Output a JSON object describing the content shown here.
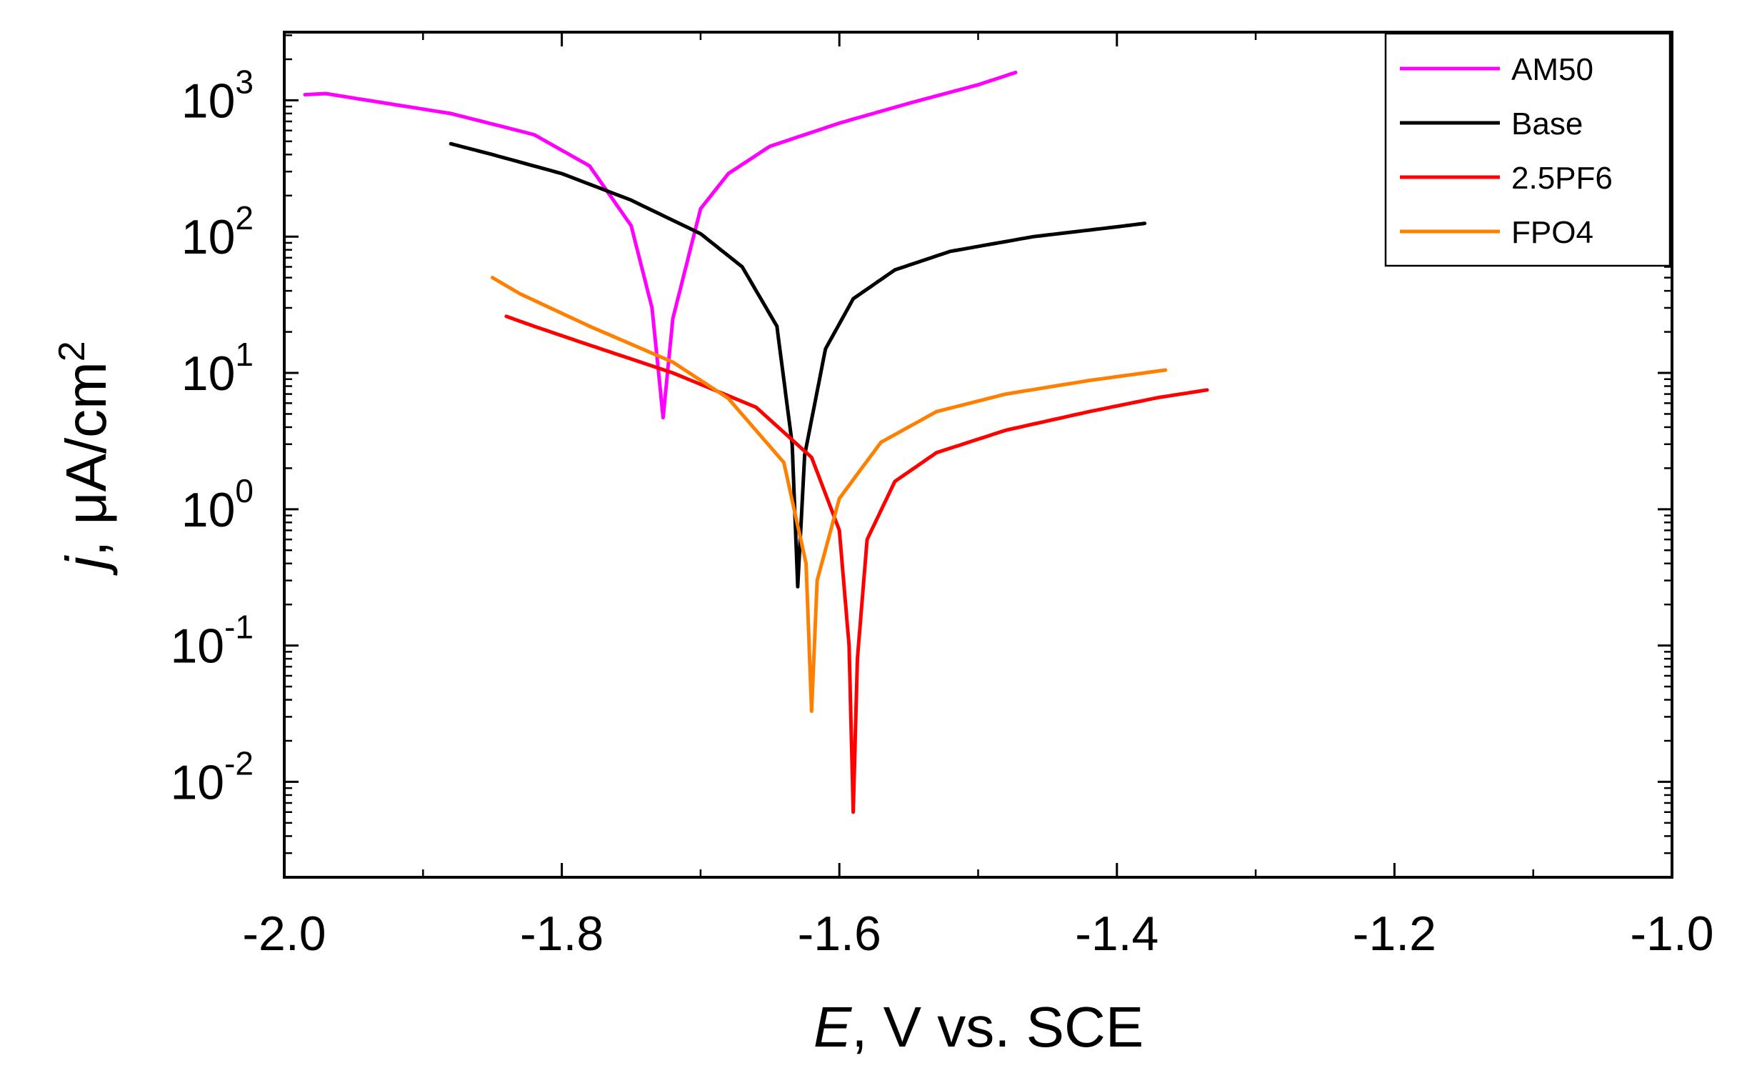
{
  "chart_data": {
    "type": "line",
    "xlabel_var": "E",
    "xlabel_rest": ", V vs. SCE",
    "ylabel_var": "j",
    "ylabel_rest": ", μA/cm",
    "ylabel_sup": "2",
    "xlim": [
      -2.0,
      -1.0
    ],
    "ylog_exponent_range": [
      -2.7,
      3.5
    ],
    "xticks": [
      "-2.0",
      "-1.8",
      "-1.6",
      "-1.4",
      "-1.2",
      "-1.0"
    ],
    "xtick_values": [
      -2.0,
      -1.8,
      -1.6,
      -1.4,
      -1.2,
      -1.0
    ],
    "yticks": [
      {
        "base": "10",
        "exp": "3",
        "value": 3
      },
      {
        "base": "10",
        "exp": "2",
        "value": 2
      },
      {
        "base": "10",
        "exp": "1",
        "value": 1
      },
      {
        "base": "10",
        "exp": "0",
        "value": 0
      },
      {
        "base": "10",
        "exp": "-1",
        "value": -1
      },
      {
        "base": "10",
        "exp": "-2",
        "value": -2
      }
    ],
    "legend_position": "top-right",
    "series": [
      {
        "name": "AM50",
        "color": "#ff00ff",
        "Ecorr": -1.727,
        "jcorr_floor": 4.7,
        "anodic": [
          {
            "E": -1.727,
            "j": 4.7
          },
          {
            "E": -1.72,
            "j": 25
          },
          {
            "E": -1.7,
            "j": 160
          },
          {
            "E": -1.68,
            "j": 290
          },
          {
            "E": -1.65,
            "j": 460
          },
          {
            "E": -1.6,
            "j": 680
          },
          {
            "E": -1.55,
            "j": 950
          },
          {
            "E": -1.5,
            "j": 1300
          },
          {
            "E": -1.473,
            "j": 1600
          }
        ],
        "cathodic": [
          {
            "E": -1.727,
            "j": 4.7
          },
          {
            "E": -1.735,
            "j": 30
          },
          {
            "E": -1.75,
            "j": 120
          },
          {
            "E": -1.78,
            "j": 330
          },
          {
            "E": -1.82,
            "j": 560
          },
          {
            "E": -1.88,
            "j": 800
          },
          {
            "E": -1.94,
            "j": 1000
          },
          {
            "E": -1.97,
            "j": 1120
          },
          {
            "E": -1.985,
            "j": 1100
          }
        ]
      },
      {
        "name": "Base",
        "color": "#000000",
        "Ecorr": -1.63,
        "jcorr_floor": 0.27,
        "anodic": [
          {
            "E": -1.63,
            "j": 0.27
          },
          {
            "E": -1.625,
            "j": 2.5
          },
          {
            "E": -1.61,
            "j": 15
          },
          {
            "E": -1.59,
            "j": 35
          },
          {
            "E": -1.56,
            "j": 57
          },
          {
            "E": -1.52,
            "j": 78
          },
          {
            "E": -1.46,
            "j": 100
          },
          {
            "E": -1.4,
            "j": 118
          },
          {
            "E": -1.38,
            "j": 125
          }
        ],
        "cathodic": [
          {
            "E": -1.63,
            "j": 0.27
          },
          {
            "E": -1.634,
            "j": 3
          },
          {
            "E": -1.645,
            "j": 22
          },
          {
            "E": -1.67,
            "j": 60
          },
          {
            "E": -1.7,
            "j": 105
          },
          {
            "E": -1.75,
            "j": 185
          },
          {
            "E": -1.8,
            "j": 290
          },
          {
            "E": -1.85,
            "j": 400
          },
          {
            "E": -1.88,
            "j": 480
          }
        ]
      },
      {
        "name": "2.5PF6",
        "color": "#ff0000",
        "Ecorr": -1.59,
        "jcorr_floor": 0.006,
        "anodic": [
          {
            "E": -1.59,
            "j": 0.006
          },
          {
            "E": -1.587,
            "j": 0.08
          },
          {
            "E": -1.58,
            "j": 0.6
          },
          {
            "E": -1.56,
            "j": 1.6
          },
          {
            "E": -1.53,
            "j": 2.6
          },
          {
            "E": -1.48,
            "j": 3.8
          },
          {
            "E": -1.42,
            "j": 5.2
          },
          {
            "E": -1.37,
            "j": 6.6
          },
          {
            "E": -1.335,
            "j": 7.5
          }
        ],
        "cathodic": [
          {
            "E": -1.59,
            "j": 0.006
          },
          {
            "E": -1.593,
            "j": 0.1
          },
          {
            "E": -1.6,
            "j": 0.7
          },
          {
            "E": -1.62,
            "j": 2.4
          },
          {
            "E": -1.66,
            "j": 5.6
          },
          {
            "E": -1.72,
            "j": 10
          },
          {
            "E": -1.78,
            "j": 16
          },
          {
            "E": -1.82,
            "j": 22
          },
          {
            "E": -1.84,
            "j": 26
          }
        ]
      },
      {
        "name": "FPO4",
        "color": "#ff8000",
        "Ecorr": -1.62,
        "jcorr_floor": 0.033,
        "anodic": [
          {
            "E": -1.62,
            "j": 0.033
          },
          {
            "E": -1.616,
            "j": 0.3
          },
          {
            "E": -1.6,
            "j": 1.2
          },
          {
            "E": -1.57,
            "j": 3.1
          },
          {
            "E": -1.53,
            "j": 5.2
          },
          {
            "E": -1.48,
            "j": 7
          },
          {
            "E": -1.42,
            "j": 8.8
          },
          {
            "E": -1.365,
            "j": 10.5
          }
        ],
        "cathodic": [
          {
            "E": -1.62,
            "j": 0.033
          },
          {
            "E": -1.624,
            "j": 0.4
          },
          {
            "E": -1.64,
            "j": 2.2
          },
          {
            "E": -1.68,
            "j": 6.5
          },
          {
            "E": -1.72,
            "j": 12
          },
          {
            "E": -1.78,
            "j": 22
          },
          {
            "E": -1.83,
            "j": 38
          },
          {
            "E": -1.85,
            "j": 50
          }
        ]
      }
    ]
  }
}
